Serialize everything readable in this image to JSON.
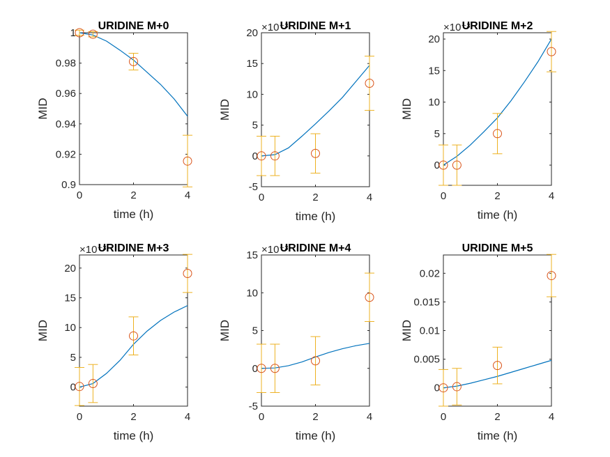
{
  "colors": {
    "fit_line": "#0072BD",
    "marker": "#D95319",
    "errorbar": "#EDB120",
    "axis": "#262626"
  },
  "chart_data": [
    {
      "type": "line",
      "title": "URIDINE M+0",
      "xlabel": "time (h)",
      "ylabel": "MID",
      "multiplier": "",
      "xlim": [
        0,
        4
      ],
      "ylim": [
        0.9,
        1.0
      ],
      "xticks": [
        0,
        2,
        4
      ],
      "xtick_labels": [
        "0",
        "2",
        "4"
      ],
      "yticks": [
        0.9,
        0.92,
        0.94,
        0.96,
        0.98,
        1.0
      ],
      "ytick_labels": [
        "0.9",
        "0.92",
        "0.94",
        "0.96",
        "0.98",
        "1"
      ],
      "fit": {
        "x": [
          0,
          0.5,
          1,
          1.5,
          2,
          2.5,
          3,
          3.5,
          4
        ],
        "y": [
          1.0,
          0.9985,
          0.9945,
          0.9885,
          0.982,
          0.974,
          0.966,
          0.9565,
          0.945
        ]
      },
      "points": {
        "x": [
          0,
          0.5,
          2,
          4
        ],
        "y": [
          1.0,
          0.999,
          0.981,
          0.9155
        ],
        "err": [
          0.0017,
          0.0017,
          0.0055,
          0.017
        ]
      }
    },
    {
      "type": "line",
      "title": "URIDINE M+1",
      "xlabel": "time (h)",
      "ylabel": "MID",
      "multiplier": "×10⁻³",
      "xlim": [
        0,
        4
      ],
      "ylim": [
        -5,
        20
      ],
      "xticks": [
        0,
        2,
        4
      ],
      "xtick_labels": [
        "0",
        "2",
        "4"
      ],
      "yticks": [
        -5,
        0,
        5,
        10,
        15,
        20
      ],
      "ytick_labels": [
        "-5",
        "0",
        "5",
        "10",
        "15",
        "20"
      ],
      "fit": {
        "x": [
          0,
          0.5,
          1,
          1.5,
          2,
          2.5,
          3,
          3.5,
          4
        ],
        "y": [
          0,
          0.2,
          1.3,
          3.2,
          5.2,
          7.3,
          9.5,
          12.1,
          14.7
        ]
      },
      "points": {
        "x": [
          0,
          0.5,
          2,
          4
        ],
        "y": [
          0,
          0,
          0.4,
          11.8
        ],
        "err": [
          3.2,
          3.2,
          3.2,
          4.4
        ]
      }
    },
    {
      "type": "line",
      "title": "URIDINE M+2",
      "xlabel": "time (h)",
      "ylabel": "MID",
      "multiplier": "×10⁻³",
      "xlim": [
        0,
        4
      ],
      "ylim": [
        -3.2,
        21
      ],
      "xticks": [
        0,
        2,
        4
      ],
      "xtick_labels": [
        "0",
        "2",
        "4"
      ],
      "yticks": [
        0,
        5,
        10,
        15,
        20
      ],
      "ytick_labels": [
        "0",
        "5",
        "10",
        "15",
        "20"
      ],
      "fit": {
        "x": [
          0,
          0.5,
          1,
          1.5,
          2,
          2.5,
          3,
          3.5,
          4
        ],
        "y": [
          0,
          1.4,
          3.2,
          5.3,
          7.5,
          10.2,
          13.2,
          16.4,
          20.0
        ]
      },
      "points": {
        "x": [
          0,
          0.5,
          2,
          4
        ],
        "y": [
          0,
          0,
          5.0,
          18.0
        ],
        "err": [
          3.2,
          3.2,
          3.2,
          3.2
        ]
      }
    },
    {
      "type": "line",
      "title": "URIDINE M+3",
      "xlabel": "time (h)",
      "ylabel": "MID",
      "multiplier": "×10⁻³",
      "xlim": [
        0,
        4
      ],
      "ylim": [
        -3.2,
        22.2
      ],
      "xticks": [
        0,
        2,
        4
      ],
      "xtick_labels": [
        "0",
        "2",
        "4"
      ],
      "yticks": [
        0,
        5,
        10,
        15,
        20
      ],
      "ytick_labels": [
        "0",
        "5",
        "10",
        "15",
        "20"
      ],
      "fit": {
        "x": [
          0,
          0.5,
          1,
          1.5,
          2,
          2.5,
          3,
          3.5,
          4
        ],
        "y": [
          0,
          0.6,
          2.3,
          4.5,
          7.2,
          9.4,
          11.2,
          12.6,
          13.7
        ]
      },
      "points": {
        "x": [
          0,
          0.5,
          2,
          4
        ],
        "y": [
          0.1,
          0.6,
          8.6,
          19.1
        ],
        "err": [
          3.2,
          3.2,
          3.2,
          3.2
        ]
      }
    },
    {
      "type": "line",
      "title": "URIDINE M+4",
      "xlabel": "time (h)",
      "ylabel": "MID",
      "multiplier": "×10⁻³",
      "xlim": [
        0,
        4
      ],
      "ylim": [
        -5,
        15
      ],
      "xticks": [
        0,
        2,
        4
      ],
      "xtick_labels": [
        "0",
        "2",
        "4"
      ],
      "yticks": [
        -5,
        0,
        5,
        10,
        15
      ],
      "ytick_labels": [
        "-5",
        "0",
        "5",
        "10",
        "15"
      ],
      "fit": {
        "x": [
          0,
          0.5,
          1,
          1.5,
          2,
          2.5,
          3,
          3.5,
          4
        ],
        "y": [
          0,
          0.05,
          0.35,
          0.85,
          1.5,
          2.1,
          2.6,
          3.0,
          3.3
        ]
      },
      "points": {
        "x": [
          0,
          0.5,
          2,
          4
        ],
        "y": [
          0,
          0,
          1.0,
          9.4
        ],
        "err": [
          3.2,
          3.2,
          3.2,
          3.2
        ]
      }
    },
    {
      "type": "line",
      "title": "URIDINE M+5",
      "xlabel": "time (h)",
      "ylabel": "MID",
      "multiplier": "",
      "xlim": [
        0,
        4
      ],
      "ylim": [
        -0.0032,
        0.0232
      ],
      "xticks": [
        0,
        2,
        4
      ],
      "xtick_labels": [
        "0",
        "2",
        "4"
      ],
      "yticks": [
        0,
        0.005,
        0.01,
        0.015,
        0.02
      ],
      "ytick_labels": [
        "0",
        "0.005",
        "0.01",
        "0.015",
        "0.02"
      ],
      "fit": {
        "x": [
          0,
          0.5,
          1,
          1.5,
          2,
          2.5,
          3,
          3.5,
          4
        ],
        "y": [
          0,
          0.0003,
          0.0008,
          0.0014,
          0.002,
          0.0027,
          0.0034,
          0.0041,
          0.0048
        ]
      },
      "points": {
        "x": [
          0,
          0.5,
          2,
          4
        ],
        "y": [
          0,
          0.0002,
          0.0039,
          0.0196
        ],
        "err": [
          0.0032,
          0.0032,
          0.0032,
          0.0037
        ]
      }
    }
  ]
}
